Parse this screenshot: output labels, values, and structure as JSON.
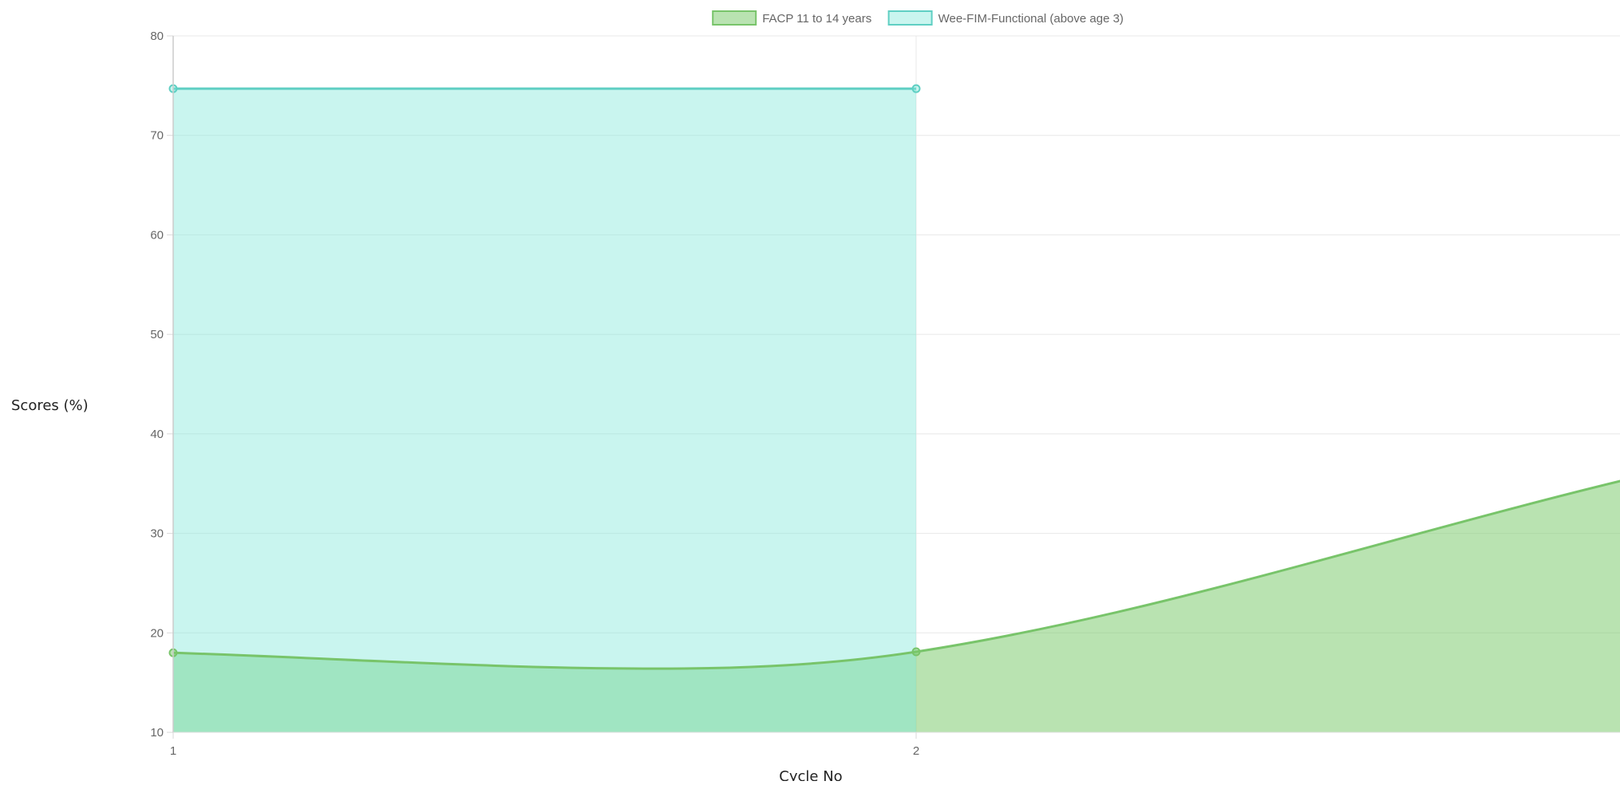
{
  "chart_data": {
    "type": "area",
    "xlabel": "Cycle No",
    "ylabel": "Scores (%)",
    "x_ticks": [
      "1",
      "2"
    ],
    "y_ticks": [
      10,
      20,
      30,
      40,
      50,
      60,
      70,
      80
    ],
    "ylim": [
      10,
      80
    ],
    "grid": true,
    "legend_position": "top",
    "series": [
      {
        "name": "FACP 11 to 14 years",
        "color": "#78c46a",
        "fill": "rgba(120, 201, 105, 0.52)",
        "points": [
          {
            "x": 1,
            "y": 18
          },
          {
            "x": 1.65,
            "y": 16.4
          },
          {
            "x": 2,
            "y": 18.1
          },
          {
            "x": 2.95,
            "y": 35.3
          }
        ]
      },
      {
        "name": "Wee-FIM-Functional (above age 3)",
        "color": "#5fcfc3",
        "fill": "rgba(126, 230, 216, 0.42)",
        "points": [
          {
            "x": 1,
            "y": 74.7
          },
          {
            "x": 2,
            "y": 74.7
          }
        ]
      }
    ]
  }
}
